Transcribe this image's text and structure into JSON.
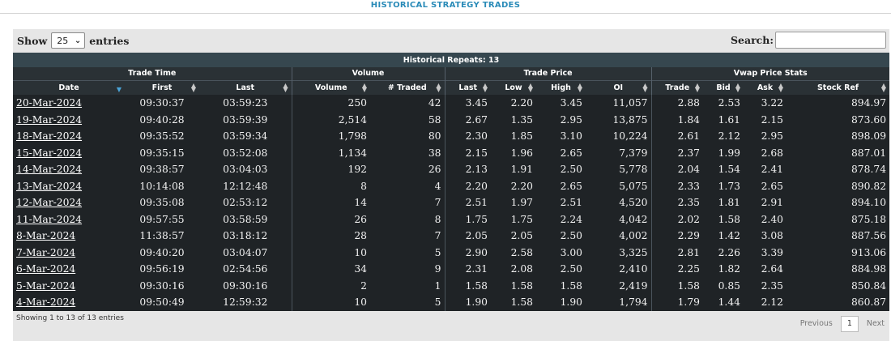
{
  "page_title": "HISTORICAL STRATEGY TRADES",
  "length": {
    "label_before": "Show",
    "selected": "25",
    "label_after": "entries"
  },
  "search": {
    "label": "Search:",
    "value": ""
  },
  "table": {
    "caption": "Historical Repeats: 13",
    "groups": [
      "Trade Time",
      "Volume",
      "Trade Price",
      "Vwap Price Stats"
    ],
    "columns": [
      "Date",
      "First",
      "Last",
      "Volume",
      "# Traded",
      "Last",
      "Low",
      "High",
      "OI",
      "Trade",
      "Bid",
      "Ask",
      "Stock Ref"
    ],
    "rows": [
      [
        "20-Mar-2024",
        "09:30:37",
        "03:59:23",
        "250",
        "42",
        "3.45",
        "2.20",
        "3.45",
        "11,057",
        "2.88",
        "2.53",
        "3.22",
        "894.97"
      ],
      [
        "19-Mar-2024",
        "09:40:28",
        "03:59:39",
        "2,514",
        "58",
        "2.67",
        "1.35",
        "2.95",
        "13,875",
        "1.84",
        "1.61",
        "2.15",
        "873.60"
      ],
      [
        "18-Mar-2024",
        "09:35:52",
        "03:59:34",
        "1,798",
        "80",
        "2.30",
        "1.85",
        "3.10",
        "10,224",
        "2.61",
        "2.12",
        "2.95",
        "898.09"
      ],
      [
        "15-Mar-2024",
        "09:35:15",
        "03:52:08",
        "1,134",
        "38",
        "2.15",
        "1.96",
        "2.65",
        "7,379",
        "2.37",
        "1.99",
        "2.68",
        "887.01"
      ],
      [
        "14-Mar-2024",
        "09:38:57",
        "03:04:03",
        "192",
        "26",
        "2.13",
        "1.91",
        "2.50",
        "5,778",
        "2.04",
        "1.54",
        "2.41",
        "878.74"
      ],
      [
        "13-Mar-2024",
        "10:14:08",
        "12:12:48",
        "8",
        "4",
        "2.20",
        "2.20",
        "2.65",
        "5,075",
        "2.33",
        "1.73",
        "2.65",
        "890.82"
      ],
      [
        "12-Mar-2024",
        "09:35:08",
        "02:53:12",
        "14",
        "7",
        "2.51",
        "1.97",
        "2.51",
        "4,520",
        "2.35",
        "1.81",
        "2.91",
        "894.10"
      ],
      [
        "11-Mar-2024",
        "09:57:55",
        "03:58:59",
        "26",
        "8",
        "1.75",
        "1.75",
        "2.24",
        "4,042",
        "2.02",
        "1.58",
        "2.40",
        "875.18"
      ],
      [
        "8-Mar-2024",
        "11:38:57",
        "03:18:12",
        "28",
        "7",
        "2.05",
        "2.05",
        "2.50",
        "4,002",
        "2.29",
        "1.42",
        "3.08",
        "887.56"
      ],
      [
        "7-Mar-2024",
        "09:40:20",
        "03:04:07",
        "10",
        "5",
        "2.90",
        "2.58",
        "3.00",
        "3,325",
        "2.81",
        "2.26",
        "3.39",
        "913.06"
      ],
      [
        "6-Mar-2024",
        "09:56:19",
        "02:54:56",
        "34",
        "9",
        "2.31",
        "2.08",
        "2.50",
        "2,410",
        "2.25",
        "1.82",
        "2.64",
        "884.98"
      ],
      [
        "5-Mar-2024",
        "09:30:16",
        "09:30:16",
        "2",
        "1",
        "1.58",
        "1.58",
        "1.58",
        "2,419",
        "1.58",
        "0.85",
        "2.35",
        "850.84"
      ],
      [
        "4-Mar-2024",
        "09:50:49",
        "12:59:32",
        "10",
        "5",
        "1.90",
        "1.58",
        "1.90",
        "1,794",
        "1.79",
        "1.44",
        "2.12",
        "860.87"
      ]
    ]
  },
  "info_text": "Showing 1 to 13 of 13 entries",
  "pager": {
    "previous": "Previous",
    "current": "1",
    "next": "Next"
  },
  "icons": {
    "sort": "sort-icon",
    "sort_active": "sort-desc-icon",
    "select": "chevron-down-icon"
  },
  "colors": {
    "header": "#36474f",
    "subheader": "#2a3135",
    "body": "#1f2326",
    "title": "#2a8bb8",
    "sort_active": "#4aa4d8"
  }
}
